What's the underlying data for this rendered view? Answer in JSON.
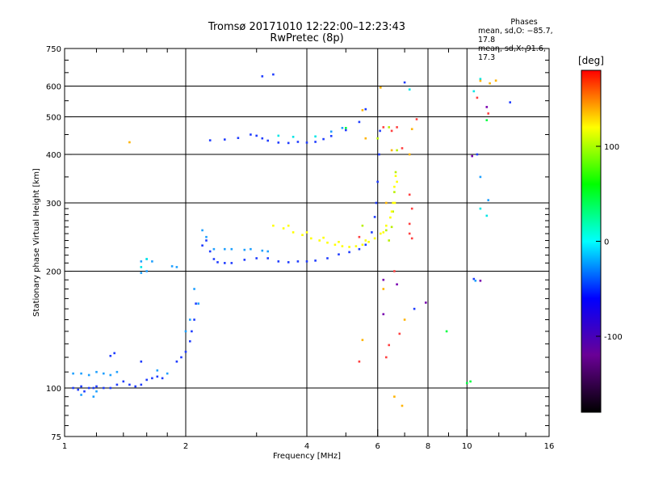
{
  "title": "Tromsø 20171010 12:22:00–12:23:43",
  "subtitle": "RwPretec (8p)",
  "phases": {
    "header": "Phases",
    "o_line": "mean, sd,O: −85.7, 17.8",
    "x_line": "mean, sd,X:  91.6, 17.3"
  },
  "chart_data": {
    "type": "scatter",
    "xlabel": "Frequency [MHz]",
    "ylabel": "Stationary phase Virtual Height [km]",
    "x_scale": "log",
    "y_scale": "log",
    "xlim": [
      1,
      16
    ],
    "ylim": [
      75,
      750
    ],
    "x_ticks": [
      1,
      2,
      4,
      6,
      8,
      10,
      16
    ],
    "y_ticks": [
      75,
      100,
      200,
      300,
      400,
      500,
      600,
      750
    ],
    "x_grid": [
      2,
      4,
      6,
      8,
      10
    ],
    "y_grid": [
      100,
      200,
      300,
      400,
      500,
      600
    ],
    "colorbar": {
      "label": "[deg]",
      "range": [
        -180,
        180
      ],
      "ticks": [
        100,
        0,
        -100
      ],
      "colors": [
        "#000000",
        "#6a0096",
        "#0000ff",
        "#00ffff",
        "#00ff00",
        "#ffff00",
        "#ff0000"
      ]
    },
    "series": [
      {
        "color": "#1f3cff",
        "points": [
          [
            1.05,
            100
          ],
          [
            1.08,
            99
          ],
          [
            1.1,
            101
          ],
          [
            1.12,
            98
          ],
          [
            1.15,
            100
          ],
          [
            1.18,
            100
          ],
          [
            1.2,
            101
          ],
          [
            1.25,
            100
          ],
          [
            1.3,
            100
          ],
          [
            1.35,
            102
          ],
          [
            1.4,
            104
          ],
          [
            1.45,
            102
          ],
          [
            1.5,
            101
          ],
          [
            1.55,
            102
          ],
          [
            1.6,
            105
          ],
          [
            1.65,
            106
          ],
          [
            1.7,
            107
          ],
          [
            1.75,
            106
          ],
          [
            1.3,
            121
          ],
          [
            1.33,
            123
          ],
          [
            1.55,
            117
          ],
          [
            1.9,
            117
          ],
          [
            1.95,
            120
          ],
          [
            2.0,
            124
          ],
          [
            2.05,
            132
          ],
          [
            2.07,
            140
          ],
          [
            2.1,
            150
          ],
          [
            2.12,
            165
          ],
          [
            2.2,
            233
          ],
          [
            2.25,
            240
          ],
          [
            2.3,
            225
          ],
          [
            2.35,
            215
          ],
          [
            2.4,
            211
          ],
          [
            2.5,
            210
          ],
          [
            2.6,
            210
          ],
          [
            2.8,
            214
          ],
          [
            3.0,
            216
          ],
          [
            3.2,
            216
          ],
          [
            3.4,
            212
          ],
          [
            3.6,
            211
          ],
          [
            3.8,
            212
          ],
          [
            4.0,
            212
          ],
          [
            4.2,
            213
          ],
          [
            4.5,
            216
          ],
          [
            4.8,
            221
          ],
          [
            5.1,
            224
          ],
          [
            5.4,
            228
          ],
          [
            5.6,
            234
          ],
          [
            5.8,
            252
          ],
          [
            5.9,
            276
          ],
          [
            5.95,
            300
          ],
          [
            6.0,
            340
          ],
          [
            6.05,
            400
          ],
          [
            6.08,
            460
          ],
          [
            2.3,
            435
          ],
          [
            2.5,
            437
          ],
          [
            2.7,
            441
          ],
          [
            2.9,
            450
          ],
          [
            3.0,
            447
          ],
          [
            3.1,
            440
          ],
          [
            3.2,
            434
          ],
          [
            3.4,
            429
          ],
          [
            3.6,
            428
          ],
          [
            3.8,
            431
          ],
          [
            4.0,
            429
          ],
          [
            4.2,
            431
          ],
          [
            4.4,
            438
          ],
          [
            4.6,
            446
          ],
          [
            5.0,
            462
          ],
          [
            5.4,
            485
          ],
          [
            5.6,
            523
          ],
          [
            3.1,
            636
          ],
          [
            3.3,
            643
          ],
          [
            7.0,
            613
          ],
          [
            10.6,
            400
          ],
          [
            12.8,
            545
          ],
          [
            7.4,
            160
          ],
          [
            10.4,
            191
          ]
        ]
      },
      {
        "color": "#1ea0ff",
        "points": [
          [
            1.05,
            109
          ],
          [
            1.1,
            109
          ],
          [
            1.15,
            108
          ],
          [
            1.2,
            110
          ],
          [
            1.25,
            109
          ],
          [
            1.3,
            108
          ],
          [
            1.35,
            110
          ],
          [
            1.1,
            96
          ],
          [
            1.2,
            98
          ],
          [
            1.18,
            95
          ],
          [
            1.55,
            212
          ],
          [
            1.6,
            215
          ],
          [
            1.55,
            198
          ],
          [
            1.6,
            200
          ],
          [
            1.65,
            212
          ],
          [
            1.85,
            206
          ],
          [
            1.9,
            205
          ],
          [
            2.15,
            165
          ],
          [
            2.2,
            255
          ],
          [
            2.25,
            245
          ],
          [
            2.35,
            228
          ],
          [
            2.5,
            228
          ],
          [
            2.6,
            228
          ],
          [
            2.8,
            227
          ],
          [
            2.9,
            228
          ],
          [
            3.1,
            226
          ],
          [
            3.2,
            225
          ],
          [
            2.0,
            140
          ],
          [
            2.05,
            150
          ],
          [
            2.1,
            180
          ],
          [
            1.7,
            111
          ],
          [
            1.8,
            109
          ],
          [
            4.6,
            458
          ],
          [
            4.9,
            468
          ],
          [
            10.5,
            189
          ],
          [
            10.8,
            350
          ],
          [
            11.3,
            305
          ]
        ]
      },
      {
        "color": "#00e6e6",
        "points": [
          [
            3.4,
            447
          ],
          [
            3.7,
            444
          ],
          [
            4.2,
            445
          ],
          [
            10.4,
            582
          ],
          [
            10.8,
            626
          ],
          [
            11.2,
            278
          ],
          [
            10.8,
            290
          ],
          [
            1.55,
            205
          ],
          [
            1.6,
            215
          ],
          [
            7.2,
            588
          ]
        ]
      },
      {
        "color": "#00ff40",
        "points": [
          [
            5.0,
            468
          ],
          [
            10.2,
            104
          ],
          [
            10.0,
            103
          ],
          [
            8.9,
            140
          ],
          [
            11.2,
            490
          ]
        ]
      },
      {
        "color": "#b8f000",
        "points": [
          [
            6.3,
            255
          ],
          [
            6.4,
            240
          ],
          [
            6.5,
            260
          ],
          [
            6.55,
            285
          ],
          [
            6.6,
            320
          ],
          [
            6.65,
            360
          ],
          [
            6.7,
            410
          ],
          [
            6.4,
            470
          ],
          [
            5.5,
            262
          ],
          [
            6.0,
            440
          ]
        ]
      },
      {
        "color": "#ffff00",
        "points": [
          [
            3.3,
            262
          ],
          [
            3.5,
            258
          ],
          [
            3.7,
            252
          ],
          [
            3.9,
            248
          ],
          [
            4.1,
            243
          ],
          [
            4.3,
            240
          ],
          [
            4.5,
            237
          ],
          [
            4.7,
            234
          ],
          [
            4.9,
            232
          ],
          [
            5.1,
            231
          ],
          [
            5.3,
            232
          ],
          [
            5.5,
            234
          ],
          [
            5.7,
            238
          ],
          [
            5.9,
            243
          ],
          [
            6.1,
            250
          ],
          [
            6.3,
            262
          ],
          [
            6.45,
            275
          ],
          [
            6.55,
            300
          ],
          [
            6.6,
            330
          ],
          [
            6.65,
            352
          ],
          [
            6.7,
            340
          ],
          [
            6.62,
            300
          ],
          [
            3.6,
            262
          ],
          [
            4.0,
            252
          ],
          [
            4.4,
            244
          ],
          [
            4.8,
            238
          ],
          [
            5.6,
            240
          ],
          [
            6.2,
            252
          ],
          [
            6.5,
            285
          ]
        ]
      },
      {
        "color": "#ffb400",
        "points": [
          [
            5.5,
            520
          ],
          [
            5.6,
            440
          ],
          [
            6.5,
            410
          ],
          [
            6.3,
            300
          ],
          [
            6.9,
            90
          ],
          [
            6.6,
            95
          ],
          [
            1.45,
            430
          ],
          [
            7.3,
            465
          ],
          [
            10.8,
            619
          ],
          [
            11.4,
            610
          ],
          [
            11.8,
            620
          ],
          [
            6.2,
            180
          ],
          [
            5.5,
            133
          ],
          [
            7.2,
            400
          ],
          [
            6.1,
            595
          ],
          [
            7.0,
            150
          ]
        ]
      },
      {
        "color": "#ff4040",
        "points": [
          [
            6.7,
            470
          ],
          [
            6.9,
            415
          ],
          [
            7.2,
            315
          ],
          [
            7.3,
            290
          ],
          [
            7.2,
            265
          ],
          [
            7.3,
            243
          ],
          [
            7.2,
            250
          ],
          [
            7.5,
            493
          ],
          [
            10.6,
            560
          ],
          [
            6.5,
            460
          ],
          [
            6.2,
            470
          ],
          [
            6.6,
            200
          ],
          [
            5.4,
            117
          ],
          [
            6.3,
            120
          ],
          [
            6.4,
            129
          ],
          [
            5.4,
            245
          ],
          [
            6.8,
            138
          ],
          [
            11.3,
            510
          ]
        ]
      },
      {
        "color": "#7a00b0",
        "points": [
          [
            11.2,
            530
          ],
          [
            10.3,
            396
          ],
          [
            7.9,
            166
          ],
          [
            10.8,
            189
          ],
          [
            6.2,
            155
          ],
          [
            6.2,
            190
          ],
          [
            6.7,
            185
          ]
        ]
      }
    ]
  }
}
